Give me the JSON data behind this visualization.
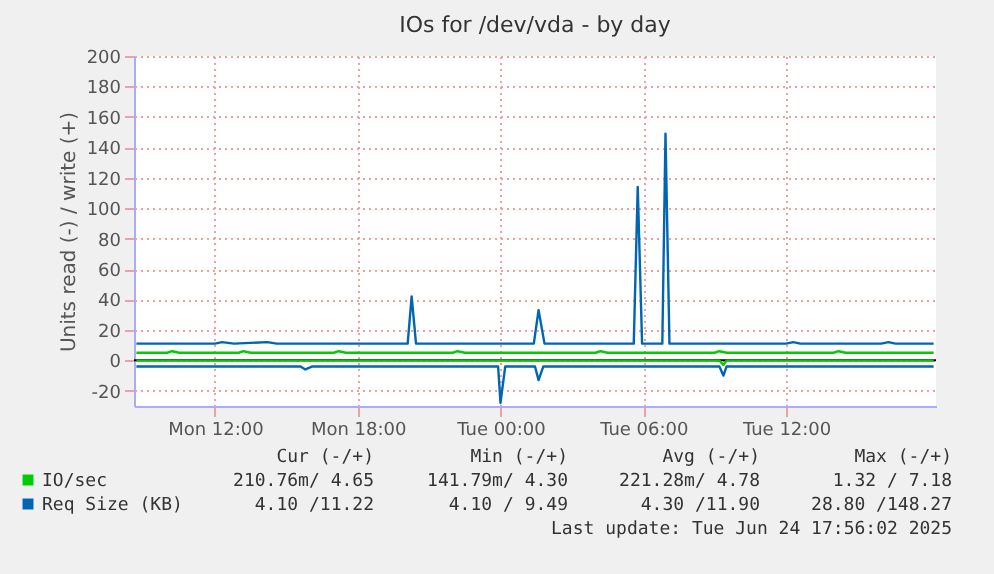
{
  "chart_data": {
    "type": "line",
    "title": "IOs for /dev/vda - by day",
    "ylabel": "Units read (-) / write (+)",
    "xlim": [
      "2025-06-23T08:36",
      "2025-06-24T18:18"
    ],
    "xticks": [
      {
        "value": "2025-06-23T12:00",
        "label": "Mon 12:00"
      },
      {
        "value": "2025-06-23T18:00",
        "label": "Mon 18:00"
      },
      {
        "value": "2025-06-24T00:00",
        "label": "Tue 00:00"
      },
      {
        "value": "2025-06-24T06:00",
        "label": "Tue 06:00"
      },
      {
        "value": "2025-06-24T12:00",
        "label": "Tue 12:00"
      }
    ],
    "ylim": [
      -30,
      200
    ],
    "yticks": [
      -20,
      0,
      20,
      40,
      60,
      80,
      100,
      120,
      140,
      160,
      180,
      200
    ],
    "grid": true,
    "legend": "bottom",
    "ref_lines": [
      {
        "axis": "y",
        "value": 0,
        "color": "#000000"
      }
    ],
    "series": [
      {
        "name": "IO/sec",
        "color": "#00cc00",
        "x": [
          "2025-06-23T08:42",
          "2025-06-23T10:00",
          "2025-06-23T10:12",
          "2025-06-23T10:30",
          "2025-06-23T13:00",
          "2025-06-23T13:12",
          "2025-06-23T13:30",
          "2025-06-23T17:00",
          "2025-06-23T17:12",
          "2025-06-23T17:30",
          "2025-06-23T22:00",
          "2025-06-23T22:12",
          "2025-06-23T22:30",
          "2025-06-24T04:00",
          "2025-06-24T04:12",
          "2025-06-24T04:30",
          "2025-06-24T09:00",
          "2025-06-24T09:12",
          "2025-06-24T09:30",
          "2025-06-24T14:00",
          "2025-06-24T14:12",
          "2025-06-24T14:30",
          "2025-06-24T18:12"
        ],
        "values": [
          5,
          5,
          6,
          5,
          5,
          6,
          5,
          5,
          6,
          5,
          5,
          6,
          5,
          5,
          6,
          5,
          5,
          6,
          5,
          5,
          6,
          5,
          5
        ]
      },
      {
        "color": "#00cc00",
        "x": [
          "2025-06-23T08:42",
          "2025-06-24T09:12",
          "2025-06-24T09:22",
          "2025-06-24T09:30",
          "2025-06-24T18:12"
        ],
        "values": [
          -0.2,
          -0.2,
          -3,
          -0.2,
          -0.2
        ]
      },
      {
        "name": "Req Size (KB)",
        "color": "#0066b3",
        "x": [
          "2025-06-23T08:42",
          "2025-06-23T12:00",
          "2025-06-23T12:18",
          "2025-06-23T12:48",
          "2025-06-23T14:12",
          "2025-06-23T14:36",
          "2025-06-23T20:06",
          "2025-06-23T20:16",
          "2025-06-23T20:27",
          "2025-06-24T01:24",
          "2025-06-24T01:36",
          "2025-06-24T01:51",
          "2025-06-24T05:36",
          "2025-06-24T05:46",
          "2025-06-24T05:57",
          "2025-06-24T06:48",
          "2025-06-24T06:56",
          "2025-06-24T07:06",
          "2025-06-24T12:00",
          "2025-06-24T12:18",
          "2025-06-24T12:36",
          "2025-06-24T16:00",
          "2025-06-24T16:18",
          "2025-06-24T16:36",
          "2025-06-24T18:12"
        ],
        "values": [
          11,
          11,
          12,
          11,
          12,
          11,
          11,
          42,
          11,
          11,
          33,
          11,
          11,
          114,
          11,
          11,
          149,
          11,
          11,
          12,
          11,
          11,
          12,
          11,
          11
        ]
      },
      {
        "color": "#0066b3",
        "x": [
          "2025-06-23T08:42",
          "2025-06-23T15:36",
          "2025-06-23T15:48",
          "2025-06-23T16:06",
          "2025-06-23T23:54",
          "2025-06-24T00:00",
          "2025-06-24T00:12",
          "2025-06-24T01:27",
          "2025-06-24T01:36",
          "2025-06-24T01:48",
          "2025-06-24T09:12",
          "2025-06-24T09:22",
          "2025-06-24T09:30",
          "2025-06-24T18:12"
        ],
        "values": [
          -4,
          -4,
          -6,
          -4,
          -4,
          -28,
          -4,
          -4,
          -13,
          -4,
          -4,
          -10,
          -4,
          -4
        ]
      }
    ],
    "annotations": [
      "Cur (-/+)",
      "Min (-/+)",
      "Avg (-/+)",
      "Max (-/+)",
      "210.76m/ 4.65",
      "141.79m/ 4.30",
      "221.28m/ 4.78",
      "1.32 / 7.18",
      "4.10 /11.22",
      "4.10 / 9.49",
      "4.30 /11.90",
      "28.80 /148.27",
      "Last update: Tue Jun 24 17:56:02 2025"
    ]
  }
}
